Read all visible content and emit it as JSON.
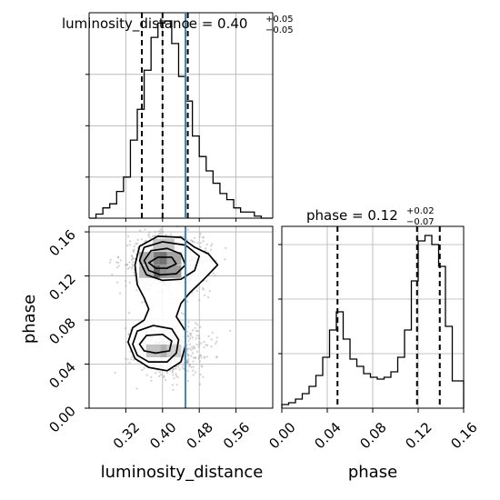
{
  "chart_data": {
    "type": "corner",
    "parameters": [
      "luminosity_distance",
      "phase"
    ],
    "colors": {
      "truth": "#4682b4",
      "hist": "#000000",
      "quantile": "#000000",
      "grid": "#b0b0b0",
      "density": "#000000"
    },
    "truth": {
      "luminosity_distance": 0.45
    },
    "panels": {
      "lum_hist": {
        "title_main": "luminosity_distance = 0.40",
        "title_sup": "+0.05",
        "title_sub": "−0.05",
        "xlim": [
          0.24,
          0.64
        ],
        "bin_edges": [
          0.24,
          0.255,
          0.27,
          0.285,
          0.3,
          0.315,
          0.33,
          0.345,
          0.36,
          0.375,
          0.39,
          0.405,
          0.42,
          0.435,
          0.45,
          0.465,
          0.48,
          0.495,
          0.51,
          0.525,
          0.54,
          0.555,
          0.57,
          0.585,
          0.6,
          0.615,
          0.64
        ],
        "counts": [
          0,
          2,
          5,
          7,
          13,
          20,
          38,
          53,
          72,
          88,
          95,
          96,
          85,
          69,
          57,
          40,
          30,
          23,
          17,
          12,
          9,
          5,
          3,
          3,
          1,
          0
        ],
        "ymax": 100,
        "quantiles": [
          0.355,
          0.4,
          0.455
        ]
      },
      "phase_hist": {
        "title_main": "phase = 0.12",
        "title_sup": "+0.02",
        "title_sub": "−0.07",
        "xlim": [
          0.0,
          0.16
        ],
        "bin_edges": [
          0.0,
          0.006,
          0.012,
          0.018,
          0.024,
          0.03,
          0.036,
          0.042,
          0.048,
          0.054,
          0.06,
          0.066,
          0.072,
          0.078,
          0.084,
          0.09,
          0.096,
          0.102,
          0.108,
          0.114,
          0.12,
          0.126,
          0.132,
          0.138,
          0.144,
          0.15,
          0.156,
          0.16
        ],
        "counts": [
          2,
          3,
          5,
          8,
          12,
          18,
          28,
          43,
          53,
          38,
          27,
          23,
          19,
          17,
          16,
          17,
          20,
          28,
          43,
          70,
          92,
          95,
          90,
          78,
          45,
          15,
          15
        ],
        "ymax": 100,
        "quantiles": [
          0.049,
          0.119,
          0.139
        ],
        "xticks": [
          "0.00",
          "0.04",
          "0.08",
          "0.12",
          "0.16"
        ],
        "xlabel": "phase"
      },
      "joint": {
        "xlim": [
          0.24,
          0.64
        ],
        "ylim": [
          0.0,
          0.165
        ],
        "xticks": [
          "0.32",
          "0.40",
          "0.48",
          "0.56"
        ],
        "xtick_values": [
          0.32,
          0.4,
          0.48,
          0.56
        ],
        "yticks": [
          "0.00",
          "0.04",
          "0.08",
          "0.12",
          "0.16"
        ],
        "ytick_values": [
          0.0,
          0.04,
          0.08,
          0.12,
          0.16
        ],
        "xlabel": "luminosity_distance",
        "ylabel": "phase",
        "modes": [
          {
            "x": 0.41,
            "y": 0.132,
            "sx": 0.045,
            "sy": 0.011,
            "w": 0.62
          },
          {
            "x": 0.41,
            "y": 0.053,
            "sx": 0.04,
            "sy": 0.01,
            "w": 0.38
          }
        ],
        "density_cells": [
          {
            "x": 0.38,
            "y": 0.124,
            "v": 0.6
          },
          {
            "x": 0.395,
            "y": 0.124,
            "v": 0.75
          },
          {
            "x": 0.41,
            "y": 0.124,
            "v": 0.55
          },
          {
            "x": 0.38,
            "y": 0.136,
            "v": 0.55
          },
          {
            "x": 0.395,
            "y": 0.136,
            "v": 0.65
          },
          {
            "x": 0.41,
            "y": 0.136,
            "v": 0.7
          },
          {
            "x": 0.425,
            "y": 0.136,
            "v": 0.45
          },
          {
            "x": 0.425,
            "y": 0.124,
            "v": 0.5
          },
          {
            "x": 0.365,
            "y": 0.136,
            "v": 0.4
          },
          {
            "x": 0.365,
            "y": 0.124,
            "v": 0.35
          },
          {
            "x": 0.395,
            "y": 0.148,
            "v": 0.3
          },
          {
            "x": 0.41,
            "y": 0.148,
            "v": 0.3
          },
          {
            "x": 0.395,
            "y": 0.052,
            "v": 0.45
          },
          {
            "x": 0.41,
            "y": 0.052,
            "v": 0.4
          },
          {
            "x": 0.38,
            "y": 0.052,
            "v": 0.3
          },
          {
            "x": 0.425,
            "y": 0.052,
            "v": 0.25
          }
        ],
        "contours": [
          [
            [
              0.34,
              0.13
            ],
            [
              0.35,
              0.147
            ],
            [
              0.39,
              0.156
            ],
            [
              0.44,
              0.155
            ],
            [
              0.47,
              0.146
            ],
            [
              0.5,
              0.14
            ],
            [
              0.52,
              0.13
            ],
            [
              0.49,
              0.117
            ],
            [
              0.46,
              0.105
            ],
            [
              0.44,
              0.095
            ],
            [
              0.43,
              0.083
            ],
            [
              0.45,
              0.07
            ],
            [
              0.45,
              0.057
            ],
            [
              0.44,
              0.042
            ],
            [
              0.41,
              0.034
            ],
            [
              0.37,
              0.037
            ],
            [
              0.34,
              0.045
            ],
            [
              0.325,
              0.06
            ],
            [
              0.335,
              0.073
            ],
            [
              0.36,
              0.08
            ],
            [
              0.37,
              0.09
            ],
            [
              0.36,
              0.1
            ],
            [
              0.345,
              0.112
            ]
          ],
          [
            [
              0.35,
              0.134
            ],
            [
              0.36,
              0.146
            ],
            [
              0.4,
              0.151
            ],
            [
              0.45,
              0.148
            ],
            [
              0.48,
              0.138
            ],
            [
              0.47,
              0.125
            ],
            [
              0.44,
              0.117
            ],
            [
              0.4,
              0.116
            ],
            [
              0.365,
              0.121
            ]
          ],
          [
            [
              0.36,
              0.134
            ],
            [
              0.375,
              0.143
            ],
            [
              0.41,
              0.145
            ],
            [
              0.44,
              0.14
            ],
            [
              0.45,
              0.13
            ],
            [
              0.43,
              0.122
            ],
            [
              0.395,
              0.121
            ],
            [
              0.37,
              0.125
            ]
          ],
          [
            [
              0.37,
              0.132
            ],
            [
              0.39,
              0.137
            ],
            [
              0.42,
              0.137
            ],
            [
              0.43,
              0.131
            ],
            [
              0.41,
              0.127
            ],
            [
              0.385,
              0.127
            ]
          ],
          [
            [
              0.335,
              0.058
            ],
            [
              0.345,
              0.07
            ],
            [
              0.38,
              0.075
            ],
            [
              0.42,
              0.072
            ],
            [
              0.435,
              0.062
            ],
            [
              0.43,
              0.05
            ],
            [
              0.41,
              0.042
            ],
            [
              0.37,
              0.042
            ],
            [
              0.345,
              0.048
            ]
          ],
          [
            [
              0.35,
              0.058
            ],
            [
              0.365,
              0.066
            ],
            [
              0.4,
              0.067
            ],
            [
              0.42,
              0.061
            ],
            [
              0.415,
              0.052
            ],
            [
              0.385,
              0.05
            ],
            [
              0.36,
              0.052
            ]
          ]
        ]
      }
    }
  }
}
